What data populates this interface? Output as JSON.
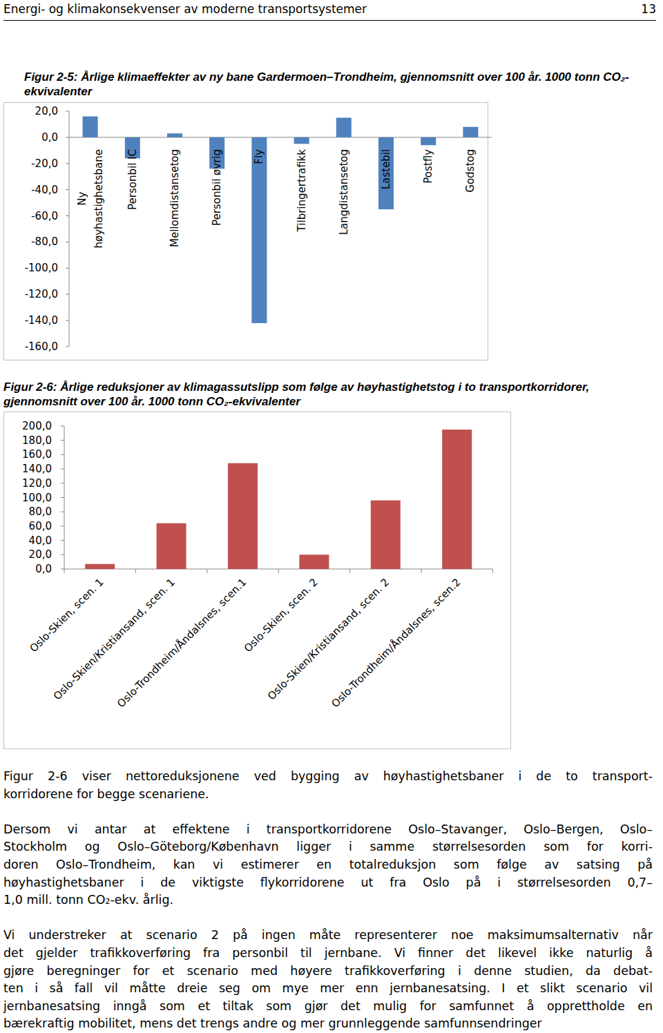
{
  "header": {
    "title": "Energi- og klimakonsekvenser av moderne transportsystemer",
    "page": "13"
  },
  "chart_data": [
    {
      "type": "bar",
      "title": "Figur 2-5: Årlige klimaeffekter av ny bane Gardermoen–Trondheim, gjennomsnitt over 100 år. 1000 tonn CO₂-ekvivalenter",
      "categories": [
        "Ny høyhastighetsbane",
        "Personbil IC",
        "Mellomdistansetog",
        "Personbil øvrig",
        "Fly",
        "Tilbringertrafikk",
        "Langdistansetog",
        "Lastebil",
        "Postfly",
        "Godstog"
      ],
      "values": [
        16,
        -16,
        3,
        -24,
        -142,
        -5,
        15,
        -55,
        -6,
        8
      ],
      "color": "#4f81bd",
      "ylim": [
        -160,
        20
      ],
      "yticks": [
        {
          "value": 20,
          "label": "20,0"
        },
        {
          "value": 0,
          "label": "0,0"
        },
        {
          "value": -20,
          "label": "-20,0"
        },
        {
          "value": -40,
          "label": "-40,0"
        },
        {
          "value": -60,
          "label": "-60,0"
        },
        {
          "value": -80,
          "label": "-80,0"
        },
        {
          "value": -100,
          "label": "-100,0"
        },
        {
          "value": -120,
          "label": "-120,0"
        },
        {
          "value": -140,
          "label": "-140,0"
        },
        {
          "value": -160,
          "label": "-160,0"
        }
      ]
    },
    {
      "type": "bar",
      "title": "Figur 2-6: Årlige reduksjoner av klimagassutslipp som følge av høyhastighetstog i to transportkorridorer, gjennomsnitt over 100 år. 1000 tonn CO₂-ekvivalenter",
      "categories": [
        "Oslo-Skien, scen. 1",
        "Oslo-Skien/Kristiansand, scen. 1",
        "Oslo-Trondheim/Åndalsnes, scen.1",
        "Oslo-Skien, scen. 2",
        "Oslo-Skien/Kristiansand, scen. 2",
        "Oslo-Trondheim/Åndalsnes, scen.2"
      ],
      "values": [
        7,
        64,
        148,
        20,
        96,
        195
      ],
      "color": "#c0504d",
      "ylim": [
        0,
        200
      ],
      "yticks": [
        {
          "value": 0,
          "label": "0,0"
        },
        {
          "value": 20,
          "label": "20,0"
        },
        {
          "value": 40,
          "label": "40,0"
        },
        {
          "value": 60,
          "label": "60,0"
        },
        {
          "value": 80,
          "label": "80,0"
        },
        {
          "value": 100,
          "label": "100,0"
        },
        {
          "value": 120,
          "label": "120,0"
        },
        {
          "value": 140,
          "label": "140,0"
        },
        {
          "value": 160,
          "label": "160,0"
        },
        {
          "value": 180,
          "label": "180,0"
        },
        {
          "value": 200,
          "label": "200,0"
        }
      ]
    }
  ],
  "paragraphs": [
    [
      "Figur 2-6 viser nettoreduksjonene ved bygging av høyhastighetsbaner i de to transport-",
      "korridorene for begge scenariene."
    ],
    [
      "Dersom vi antar at effektene i transportkorridorene Oslo–Stavanger, Oslo–Bergen, Oslo–",
      "Stockholm og Oslo–Göteborg/København ligger i samme størrelsesorden som for korri-",
      "doren Oslo–Trondheim, kan vi estimerer en totalreduksjon som følge av satsing på",
      "høyhastighetsbaner i de viktigste flykorridorene ut fra Oslo på i størrelsesorden 0,7–",
      "1,0 mill. tonn CO₂-ekv. årlig."
    ],
    [
      "Vi understreker at scenario 2 på ingen måte representerer noe maksimumsalternativ når",
      "det gjelder trafikkoverføring fra personbil til jernbane. Vi finner det likevel ikke naturlig å",
      "gjøre beregninger for et scenario med høyere trafikkoverføring i denne studien, da debat-",
      "ten i så fall vil måtte dreie seg om mye mer enn jernbanesatsing. I et slikt scenario vil",
      "jernbanesatsing inngå som et tiltak som gjør det mulig for samfunnet å opprettholde en",
      "bærekraftig mobilitet, mens det trengs andre og mer grunnleggende samfunnsendringer"
    ]
  ]
}
